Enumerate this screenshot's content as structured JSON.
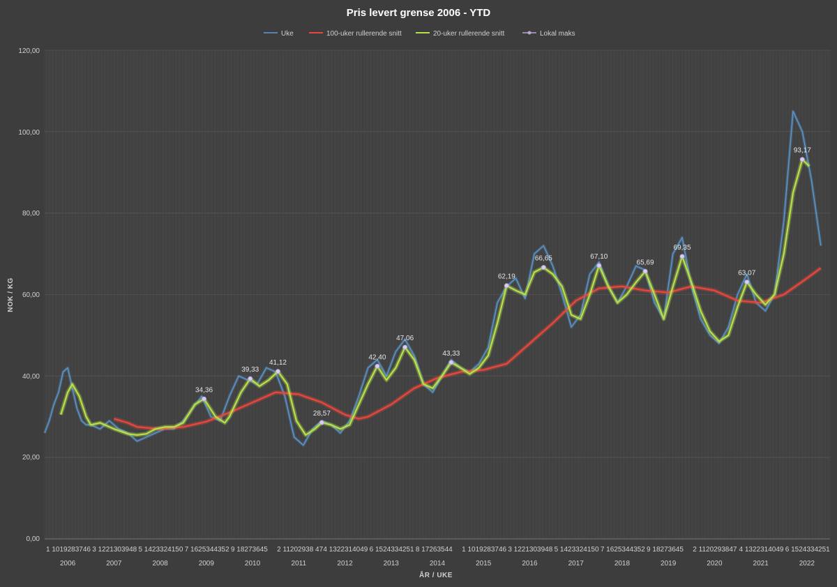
{
  "chart_data": {
    "type": "line",
    "title": "Pris levert grense 2006 - YTD",
    "xlabel": "ÅR / UKE",
    "ylabel": "NOK / KG",
    "ylim": [
      0,
      120
    ],
    "yticks": [
      "0,00",
      "20,00",
      "40,00",
      "60,00",
      "80,00",
      "100,00",
      "120,00"
    ],
    "years": [
      "2006",
      "2007",
      "2008",
      "2009",
      "2010",
      "2011",
      "2012",
      "2013",
      "2014",
      "2015",
      "2016",
      "2017",
      "2018",
      "2019",
      "2020",
      "2021",
      "2022"
    ],
    "week_tick_labels": [
      "1 1019283746",
      "3 1221303948",
      "5 1423324150",
      "7 1625344352",
      "9 18273645",
      "2 11202938 47",
      "4 1322314049",
      "6 1524334251",
      "8 17263544",
      "1 1019283746",
      "3 1221303948",
      "5 1423324150",
      "7 1625344352",
      "9 18273645",
      "2 1120293847",
      "4 1322314049",
      "6 1524334251"
    ],
    "legend": [
      {
        "name": "Uke",
        "color": "#5b9bd5"
      },
      {
        "name": "100-uker rullerende snitt",
        "color": "#e8483c"
      },
      {
        "name": "20-uker rullerende snitt",
        "color": "#b8e04a"
      },
      {
        "name": "Lokal maks",
        "color": "#b9a6d8"
      }
    ],
    "series": [
      {
        "name": "Uke",
        "color": "#5b9bd5",
        "points": [
          [
            2006.0,
            26
          ],
          [
            2006.1,
            29
          ],
          [
            2006.2,
            33
          ],
          [
            2006.3,
            36
          ],
          [
            2006.4,
            41
          ],
          [
            2006.5,
            42
          ],
          [
            2006.6,
            37
          ],
          [
            2006.7,
            32
          ],
          [
            2006.8,
            29
          ],
          [
            2006.9,
            28
          ],
          [
            2007.0,
            28
          ],
          [
            2007.2,
            27
          ],
          [
            2007.4,
            29
          ],
          [
            2007.6,
            27
          ],
          [
            2007.8,
            26
          ],
          [
            2008.0,
            24
          ],
          [
            2008.2,
            25
          ],
          [
            2008.4,
            26
          ],
          [
            2008.6,
            27
          ],
          [
            2008.8,
            27
          ],
          [
            2009.0,
            29
          ],
          [
            2009.2,
            32
          ],
          [
            2009.4,
            35
          ],
          [
            2009.6,
            30
          ],
          [
            2009.8,
            29
          ],
          [
            2010.0,
            35
          ],
          [
            2010.2,
            40
          ],
          [
            2010.4,
            39
          ],
          [
            2010.6,
            38
          ],
          [
            2010.8,
            42
          ],
          [
            2011.0,
            41
          ],
          [
            2011.2,
            35
          ],
          [
            2011.4,
            25
          ],
          [
            2011.6,
            23
          ],
          [
            2011.8,
            27
          ],
          [
            2012.0,
            29
          ],
          [
            2012.2,
            28
          ],
          [
            2012.4,
            26
          ],
          [
            2012.6,
            29
          ],
          [
            2012.8,
            35
          ],
          [
            2013.0,
            42
          ],
          [
            2013.2,
            44
          ],
          [
            2013.4,
            40
          ],
          [
            2013.6,
            46
          ],
          [
            2013.8,
            49
          ],
          [
            2014.0,
            45
          ],
          [
            2014.2,
            38
          ],
          [
            2014.4,
            36
          ],
          [
            2014.6,
            40
          ],
          [
            2014.8,
            44
          ],
          [
            2015.0,
            42
          ],
          [
            2015.2,
            41
          ],
          [
            2015.4,
            43
          ],
          [
            2015.6,
            47
          ],
          [
            2015.8,
            58
          ],
          [
            2016.0,
            62
          ],
          [
            2016.2,
            64
          ],
          [
            2016.4,
            59
          ],
          [
            2016.6,
            70
          ],
          [
            2016.8,
            72
          ],
          [
            2017.0,
            67
          ],
          [
            2017.2,
            60
          ],
          [
            2017.4,
            52
          ],
          [
            2017.6,
            55
          ],
          [
            2017.8,
            65
          ],
          [
            2018.0,
            68
          ],
          [
            2018.2,
            62
          ],
          [
            2018.4,
            58
          ],
          [
            2018.6,
            62
          ],
          [
            2018.8,
            67
          ],
          [
            2019.0,
            66
          ],
          [
            2019.2,
            58
          ],
          [
            2019.4,
            54
          ],
          [
            2019.6,
            70
          ],
          [
            2019.8,
            74
          ],
          [
            2020.0,
            62
          ],
          [
            2020.2,
            54
          ],
          [
            2020.4,
            50
          ],
          [
            2020.6,
            48
          ],
          [
            2020.8,
            52
          ],
          [
            2021.0,
            60
          ],
          [
            2021.2,
            65
          ],
          [
            2021.4,
            58
          ],
          [
            2021.6,
            56
          ],
          [
            2021.8,
            60
          ],
          [
            2022.0,
            78
          ],
          [
            2022.2,
            105
          ],
          [
            2022.4,
            100
          ],
          [
            2022.6,
            88
          ],
          [
            2022.8,
            72
          ]
        ]
      },
      {
        "name": "100-uker rullerende snitt",
        "color": "#e8483c",
        "points": [
          [
            2007.5,
            29.5
          ],
          [
            2007.8,
            28.5
          ],
          [
            2008.0,
            27.5
          ],
          [
            2008.5,
            27
          ],
          [
            2009.0,
            27.5
          ],
          [
            2009.5,
            28.8
          ],
          [
            2010.0,
            31
          ],
          [
            2010.5,
            33.5
          ],
          [
            2011.0,
            36
          ],
          [
            2011.5,
            35.5
          ],
          [
            2012.0,
            33.5
          ],
          [
            2012.5,
            30.5
          ],
          [
            2012.8,
            29.5
          ],
          [
            2013.0,
            30
          ],
          [
            2013.5,
            33
          ],
          [
            2014.0,
            37
          ],
          [
            2014.5,
            39.5
          ],
          [
            2015.0,
            41
          ],
          [
            2015.5,
            41.5
          ],
          [
            2016.0,
            43
          ],
          [
            2016.5,
            48
          ],
          [
            2017.0,
            53
          ],
          [
            2017.5,
            58.5
          ],
          [
            2018.0,
            61.5
          ],
          [
            2018.5,
            62
          ],
          [
            2019.0,
            61
          ],
          [
            2019.5,
            60.5
          ],
          [
            2020.0,
            62
          ],
          [
            2020.5,
            61
          ],
          [
            2021.0,
            58.5
          ],
          [
            2021.5,
            58
          ],
          [
            2022.0,
            60
          ],
          [
            2022.5,
            64
          ],
          [
            2022.8,
            66.5
          ]
        ]
      },
      {
        "name": "20-uker rullerende snitt",
        "color": "#b8e04a",
        "points": [
          [
            2006.35,
            30.5
          ],
          [
            2006.5,
            36
          ],
          [
            2006.6,
            38
          ],
          [
            2006.75,
            35
          ],
          [
            2006.9,
            30
          ],
          [
            2007.0,
            28
          ],
          [
            2007.2,
            28.5
          ],
          [
            2007.5,
            27
          ],
          [
            2007.8,
            25.8
          ],
          [
            2008.0,
            25.5
          ],
          [
            2008.2,
            25.8
          ],
          [
            2008.4,
            27
          ],
          [
            2008.6,
            27.5
          ],
          [
            2008.8,
            27.5
          ],
          [
            2009.0,
            28.5
          ],
          [
            2009.25,
            33
          ],
          [
            2009.45,
            34.36
          ],
          [
            2009.7,
            30
          ],
          [
            2009.9,
            28.5
          ],
          [
            2010.0,
            30
          ],
          [
            2010.25,
            36
          ],
          [
            2010.45,
            39.33
          ],
          [
            2010.65,
            37.5
          ],
          [
            2010.85,
            39
          ],
          [
            2011.05,
            41.12
          ],
          [
            2011.25,
            38
          ],
          [
            2011.45,
            29
          ],
          [
            2011.65,
            25.5
          ],
          [
            2011.85,
            27
          ],
          [
            2012.0,
            28.57
          ],
          [
            2012.2,
            28
          ],
          [
            2012.4,
            27
          ],
          [
            2012.6,
            28
          ],
          [
            2012.8,
            33
          ],
          [
            2013.0,
            38
          ],
          [
            2013.2,
            42.4
          ],
          [
            2013.4,
            39
          ],
          [
            2013.6,
            42
          ],
          [
            2013.8,
            47.06
          ],
          [
            2014.0,
            44
          ],
          [
            2014.2,
            38
          ],
          [
            2014.4,
            37
          ],
          [
            2014.6,
            40
          ],
          [
            2014.8,
            43.33
          ],
          [
            2015.0,
            42
          ],
          [
            2015.2,
            40.5
          ],
          [
            2015.4,
            42
          ],
          [
            2015.6,
            45
          ],
          [
            2015.8,
            53
          ],
          [
            2016.0,
            62.19
          ],
          [
            2016.2,
            61
          ],
          [
            2016.4,
            60
          ],
          [
            2016.6,
            65.5
          ],
          [
            2016.8,
            66.65
          ],
          [
            2017.0,
            65
          ],
          [
            2017.2,
            62
          ],
          [
            2017.4,
            55
          ],
          [
            2017.6,
            54
          ],
          [
            2017.8,
            60
          ],
          [
            2018.0,
            67.1
          ],
          [
            2018.2,
            62
          ],
          [
            2018.4,
            58
          ],
          [
            2018.6,
            60
          ],
          [
            2018.8,
            63
          ],
          [
            2019.0,
            65.69
          ],
          [
            2019.2,
            60
          ],
          [
            2019.4,
            54
          ],
          [
            2019.6,
            62
          ],
          [
            2019.8,
            69.35
          ],
          [
            2020.0,
            63
          ],
          [
            2020.2,
            56
          ],
          [
            2020.4,
            51
          ],
          [
            2020.6,
            48.5
          ],
          [
            2020.8,
            50
          ],
          [
            2021.0,
            57
          ],
          [
            2021.2,
            63.07
          ],
          [
            2021.4,
            60
          ],
          [
            2021.6,
            57.5
          ],
          [
            2021.8,
            60
          ],
          [
            2022.0,
            70
          ],
          [
            2022.2,
            85
          ],
          [
            2022.4,
            93.17
          ],
          [
            2022.55,
            91.5
          ]
        ]
      }
    ],
    "local_max": [
      {
        "x": 2009.45,
        "value": 34.36,
        "label": "34,36"
      },
      {
        "x": 2010.45,
        "value": 39.33,
        "label": "39,33"
      },
      {
        "x": 2011.05,
        "value": 41.12,
        "label": "41,12"
      },
      {
        "x": 2012.0,
        "value": 28.57,
        "label": "28,57"
      },
      {
        "x": 2013.2,
        "value": 42.4,
        "label": "42,40"
      },
      {
        "x": 2013.8,
        "value": 47.06,
        "label": "47,06"
      },
      {
        "x": 2014.8,
        "value": 43.33,
        "label": "43,33"
      },
      {
        "x": 2016.0,
        "value": 62.19,
        "label": "62,19"
      },
      {
        "x": 2016.8,
        "value": 66.65,
        "label": "66,65"
      },
      {
        "x": 2018.0,
        "value": 67.1,
        "label": "67,10"
      },
      {
        "x": 2019.0,
        "value": 65.69,
        "label": "65,69"
      },
      {
        "x": 2019.8,
        "value": 69.35,
        "label": "69,35"
      },
      {
        "x": 2021.2,
        "value": 63.07,
        "label": "63,07"
      },
      {
        "x": 2022.4,
        "value": 93.17,
        "label": "93,17"
      }
    ]
  }
}
